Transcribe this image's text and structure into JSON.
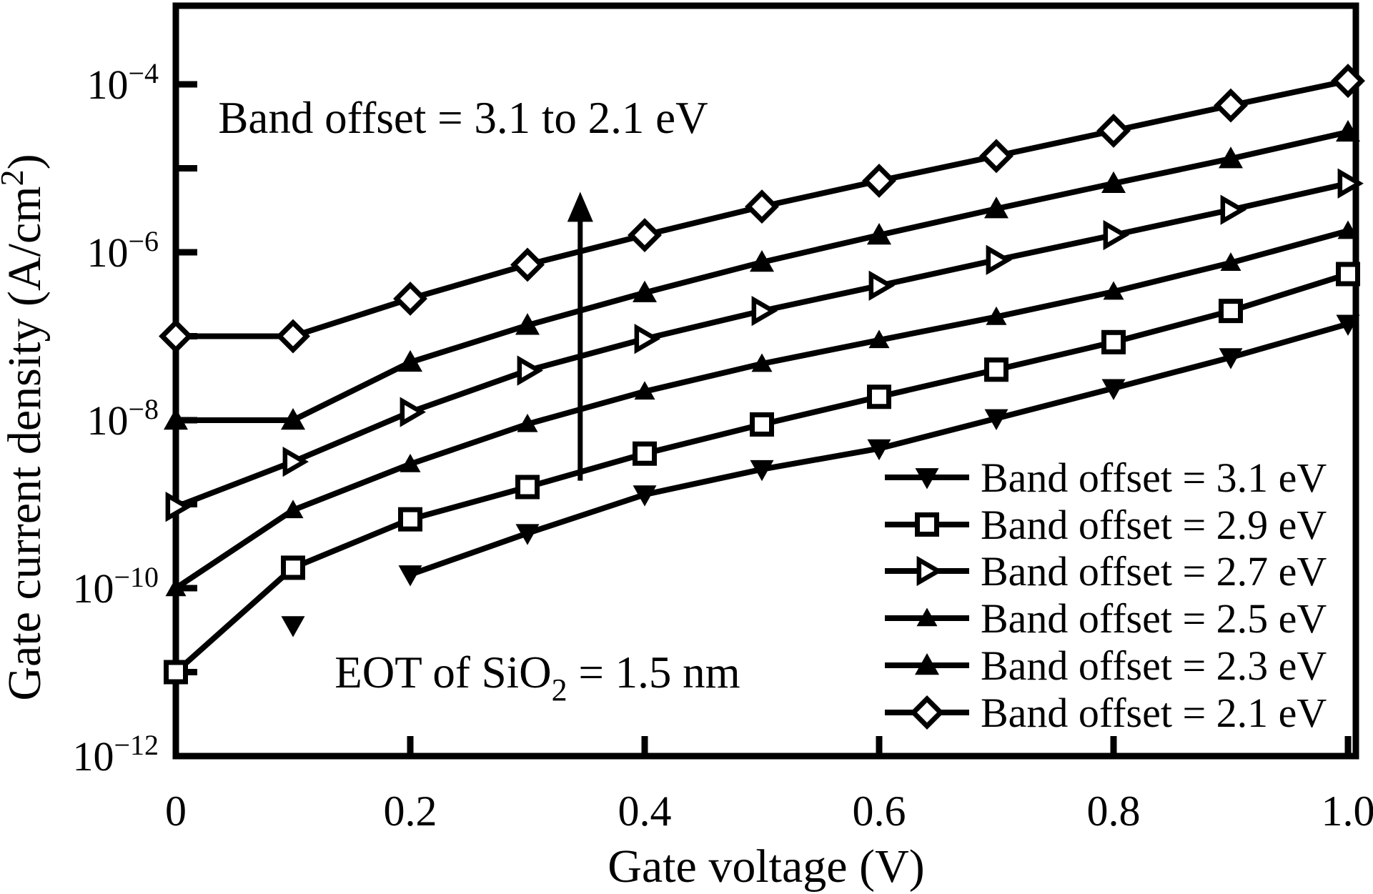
{
  "chart_data": {
    "type": "line",
    "title_annotation": "Band offset = 3.1 to 2.1 eV",
    "eot_annotation": {
      "prefix": "EOT of SiO",
      "sub": "2",
      "suffix": " = 1.5 nm"
    },
    "xlabel": "Gate voltage (V)",
    "ylabel": {
      "prefix": "Gate current density (A/cm",
      "sup": "2",
      "suffix": ")"
    },
    "xlim": [
      0,
      1.0
    ],
    "ylim_log": [
      -12,
      -3.06
    ],
    "x_ticks": [
      0.2,
      0.4,
      0.6,
      0.8,
      1.0
    ],
    "x_tick_labels": [
      {
        "value": 0,
        "label": "0"
      },
      {
        "value": 0.2,
        "label": "0.2"
      },
      {
        "value": 0.4,
        "label": "0.4"
      },
      {
        "value": 0.6,
        "label": "0.6"
      },
      {
        "value": 0.8,
        "label": "0.8"
      },
      {
        "value": 1.0,
        "label": "1.0"
      }
    ],
    "y_minor_ticks_log": [
      -4,
      -5,
      -6,
      -7,
      -8,
      -9,
      -10,
      -11
    ],
    "y_tick_labels": [
      {
        "log": -4,
        "base": "10",
        "exp": "−4"
      },
      {
        "log": -6,
        "base": "10",
        "exp": "−6"
      },
      {
        "log": -8,
        "base": "10",
        "exp": "−8"
      },
      {
        "log": -10,
        "base": "10",
        "exp": "−10"
      },
      {
        "log": -12,
        "base": "10",
        "exp": "−12"
      }
    ],
    "grid": false,
    "axis_color": "#000000",
    "line_color": "#000000",
    "background": "#ffffff",
    "arrow_annotation": {
      "x": 0.345,
      "y_from_log": -8.72,
      "y_to_log": -5.28
    },
    "legend": {
      "position": "right-middle",
      "entries": [
        {
          "label": "Band offset = 3.1 eV",
          "series": "3.1"
        },
        {
          "label": "Band offset = 2.9 eV",
          "series": "2.9"
        },
        {
          "label": "Band offset = 2.7 eV",
          "series": "2.7"
        },
        {
          "label": "Band offset = 2.5 eV",
          "series": "2.5"
        },
        {
          "label": "Band offset = 2.3 eV",
          "series": "2.3"
        },
        {
          "label": "Band offset = 2.1 eV",
          "series": "2.1"
        }
      ]
    },
    "series": [
      {
        "name": "3.1",
        "marker": "triangle-down-filled",
        "marker_size": 16.5,
        "line_from_x": 0.2,
        "x": [
          0.1,
          0.2,
          0.3,
          0.4,
          0.5,
          0.6,
          0.7,
          0.8,
          0.9,
          1.0
        ],
        "y": [
          3.6e-11,
          1.45e-10,
          4.5e-10,
          1.3e-09,
          2.6e-09,
          4.6e-09,
          1.05e-08,
          2.4e-08,
          5.6e-08,
          1.4e-07
        ]
      },
      {
        "name": "2.9",
        "marker": "square-open",
        "marker_size": 13.5,
        "x": [
          0,
          0.1,
          0.2,
          0.3,
          0.4,
          0.5,
          0.6,
          0.7,
          0.8,
          0.9,
          1.0
        ],
        "y": [
          1e-11,
          1.75e-10,
          6.6e-10,
          1.6e-09,
          4e-09,
          8.9e-09,
          1.9e-08,
          4e-08,
          8.5e-08,
          2e-07,
          5.5e-07
        ]
      },
      {
        "name": "2.7",
        "marker": "triangle-right-open",
        "marker_size": 15.5,
        "x": [
          0,
          0.1,
          0.2,
          0.3,
          0.4,
          0.5,
          0.6,
          0.7,
          0.8,
          0.9,
          1.0
        ],
        "y": [
          9.3e-10,
          3.2e-09,
          1.25e-08,
          3.9e-08,
          9.3e-08,
          2e-07,
          4e-07,
          8.1e-07,
          1.6e-06,
          3.2e-06,
          6.6e-06
        ]
      },
      {
        "name": "2.5",
        "marker": "triangle-up-filled",
        "marker_size": 14.5,
        "x": [
          0,
          0.1,
          0.2,
          0.3,
          0.4,
          0.5,
          0.6,
          0.7,
          0.8,
          0.9,
          1.0
        ],
        "y": [
          1e-10,
          8.5e-10,
          3e-09,
          9e-09,
          2.2e-08,
          4.7e-08,
          9e-08,
          1.7e-07,
          3.4e-07,
          7.5e-07,
          1.8e-06
        ]
      },
      {
        "name": "2.3",
        "marker": "triangle-up-filled",
        "marker_size": 17,
        "x": [
          0,
          0.1,
          0.2,
          0.3,
          0.4,
          0.5,
          0.6,
          0.7,
          0.8,
          0.9,
          1.0
        ],
        "y": [
          1e-08,
          1e-08,
          4.9e-08,
          1.35e-07,
          3.3e-07,
          7.6e-07,
          1.6e-06,
          3.3e-06,
          6.6e-06,
          1.3e-05,
          2.7e-05
        ]
      },
      {
        "name": "2.1",
        "marker": "diamond-open",
        "marker_size": 19,
        "x": [
          0,
          0.1,
          0.2,
          0.3,
          0.4,
          0.5,
          0.6,
          0.7,
          0.8,
          0.9,
          1.0
        ],
        "y": [
          1e-07,
          1e-07,
          2.8e-07,
          7.1e-07,
          1.6e-06,
          3.5e-06,
          7.1e-06,
          1.4e-05,
          2.8e-05,
          5.6e-05,
          0.00011
        ]
      }
    ]
  }
}
